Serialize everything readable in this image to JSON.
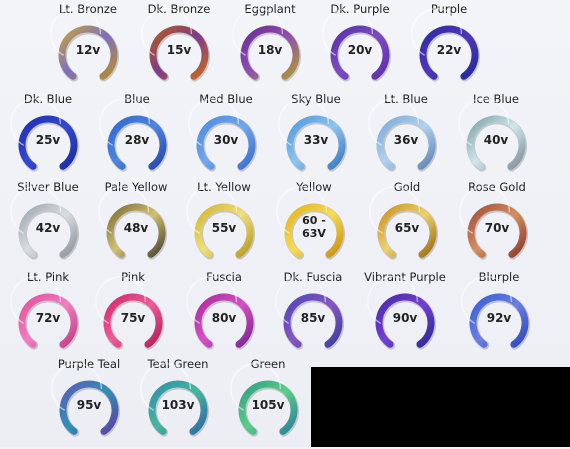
{
  "swatches": [
    {
      "label": "Lt. Bronze",
      "value": "12v",
      "stops": [
        "#c7a13b",
        "#7d6fbe",
        "#b88d2f"
      ]
    },
    {
      "label": "Dk. Bronze",
      "value": "15v",
      "stops": [
        "#b45b20",
        "#7e3b8a",
        "#c46a21"
      ]
    },
    {
      "label": "Eggplant",
      "value": "18v",
      "stops": [
        "#6c2e91",
        "#8f4eb0",
        "#b09832"
      ]
    },
    {
      "label": "Dk. Purple",
      "value": "20v",
      "stops": [
        "#5a31a7",
        "#7d4bc0",
        "#5e2fa9"
      ]
    },
    {
      "label": "Purple",
      "value": "22v",
      "stops": [
        "#2d2ca6",
        "#5135b8",
        "#232a9b"
      ]
    },
    {
      "label": "Dk. Blue",
      "value": "25v",
      "stops": [
        "#1f2db4",
        "#3349d0",
        "#1d2ca0"
      ]
    },
    {
      "label": "Blue",
      "value": "28v",
      "stops": [
        "#2e68d1",
        "#4c86e0",
        "#2447aa"
      ]
    },
    {
      "label": "Med Blue",
      "value": "30v",
      "stops": [
        "#4e8be1",
        "#72a6ee",
        "#3b6fc9"
      ]
    },
    {
      "label": "Sky Blue",
      "value": "33v",
      "stops": [
        "#4d97db",
        "#8dc4f1",
        "#3b79bc"
      ]
    },
    {
      "label": "Lt. Blue",
      "value": "36v",
      "stops": [
        "#7aa9d7",
        "#b2d1ef",
        "#5e85b1"
      ]
    },
    {
      "label": "Ice Blue",
      "value": "40v",
      "stops": [
        "#7ca2a6",
        "#cfe7ea",
        "#7e8f9c"
      ]
    },
    {
      "label": "Silver Blue",
      "value": "42v",
      "stops": [
        "#9da6ae",
        "#d8dde2",
        "#8d949d"
      ]
    },
    {
      "label": "Pale Yellow",
      "value": "48v",
      "stops": [
        "#7c6a32",
        "#d3c16f",
        "#4a4733"
      ]
    },
    {
      "label": "Lt. Yellow",
      "value": "55v",
      "stops": [
        "#d0b52b",
        "#f0df78",
        "#b79a1f"
      ]
    },
    {
      "label": "Yellow",
      "value": "60 -\n63V",
      "stops": [
        "#e0b11b",
        "#f7dc52",
        "#c98f15"
      ]
    },
    {
      "label": "Gold",
      "value": "65v",
      "stops": [
        "#c7901f",
        "#eed16d",
        "#9b6d14"
      ]
    },
    {
      "label": "Rose Gold",
      "value": "70v",
      "stops": [
        "#a34d38",
        "#d48f5f",
        "#8c3a2d"
      ]
    },
    {
      "label": "Lt. Pink",
      "value": "72v",
      "stops": [
        "#df4f9c",
        "#f57cc0",
        "#c33e86"
      ]
    },
    {
      "label": "Pink",
      "value": "75v",
      "stops": [
        "#d1286a",
        "#ef5b99",
        "#b41e58"
      ]
    },
    {
      "label": "Fuscia",
      "value": "80v",
      "stops": [
        "#ac2a9d",
        "#d84fc5",
        "#7b2692"
      ]
    },
    {
      "label": "Dk. Fuscia",
      "value": "85v",
      "stops": [
        "#4d45b8",
        "#8757c2",
        "#3d3f9d"
      ]
    },
    {
      "label": "Vibrant Purple",
      "value": "90v",
      "stops": [
        "#4a2aa7",
        "#7240d2",
        "#2b2996"
      ]
    },
    {
      "label": "Blurple",
      "value": "92v",
      "stops": [
        "#365cd7",
        "#6b7fe4",
        "#2f48bd"
      ]
    },
    {
      "label": "Purple Teal",
      "value": "95v",
      "stops": [
        "#5c5ab7",
        "#2f91b6",
        "#5e3fa4"
      ]
    },
    {
      "label": "Teal Green",
      "value": "103v",
      "stops": [
        "#2f8fa8",
        "#47b79d",
        "#2e6aa6"
      ]
    },
    {
      "label": "Green",
      "value": "105v",
      "stops": [
        "#2e9d86",
        "#5bcf87",
        "#2b7f9b"
      ]
    }
  ]
}
